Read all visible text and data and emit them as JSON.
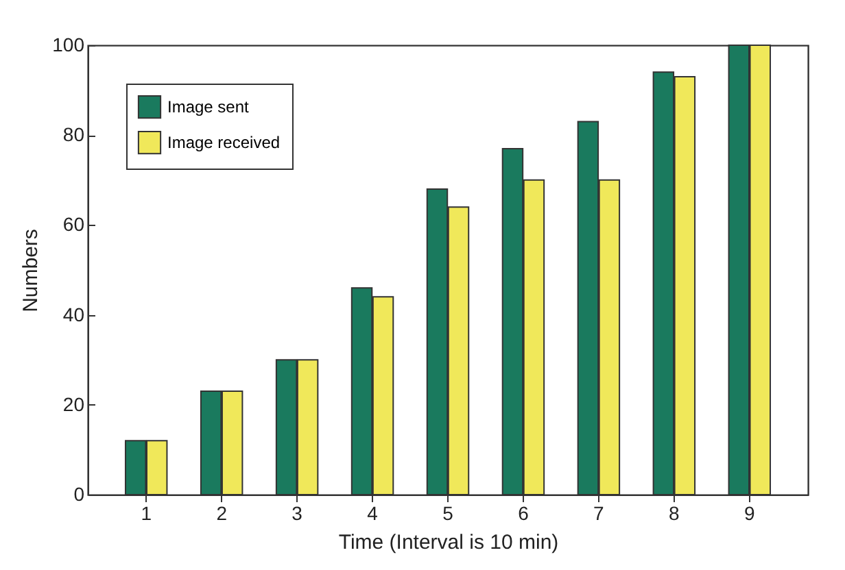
{
  "chart_data": {
    "type": "bar",
    "xlabel": "Time (Interval is 10 min)",
    "ylabel": "Numbers",
    "categories": [
      "1",
      "2",
      "3",
      "4",
      "5",
      "6",
      "7",
      "8",
      "9"
    ],
    "series": [
      {
        "name": "Image sent",
        "color": "#1a7a5e",
        "values": [
          12,
          23,
          30,
          46,
          68,
          77,
          83,
          94,
          100
        ]
      },
      {
        "name": "Image received",
        "color": "#f0e85a",
        "values": [
          12,
          23,
          30,
          44,
          64,
          70,
          70,
          93,
          100
        ]
      }
    ],
    "ylim": [
      0,
      100
    ],
    "yticks": [
      0,
      20,
      40,
      60,
      80,
      100
    ],
    "grid": false,
    "legend": "top left"
  }
}
